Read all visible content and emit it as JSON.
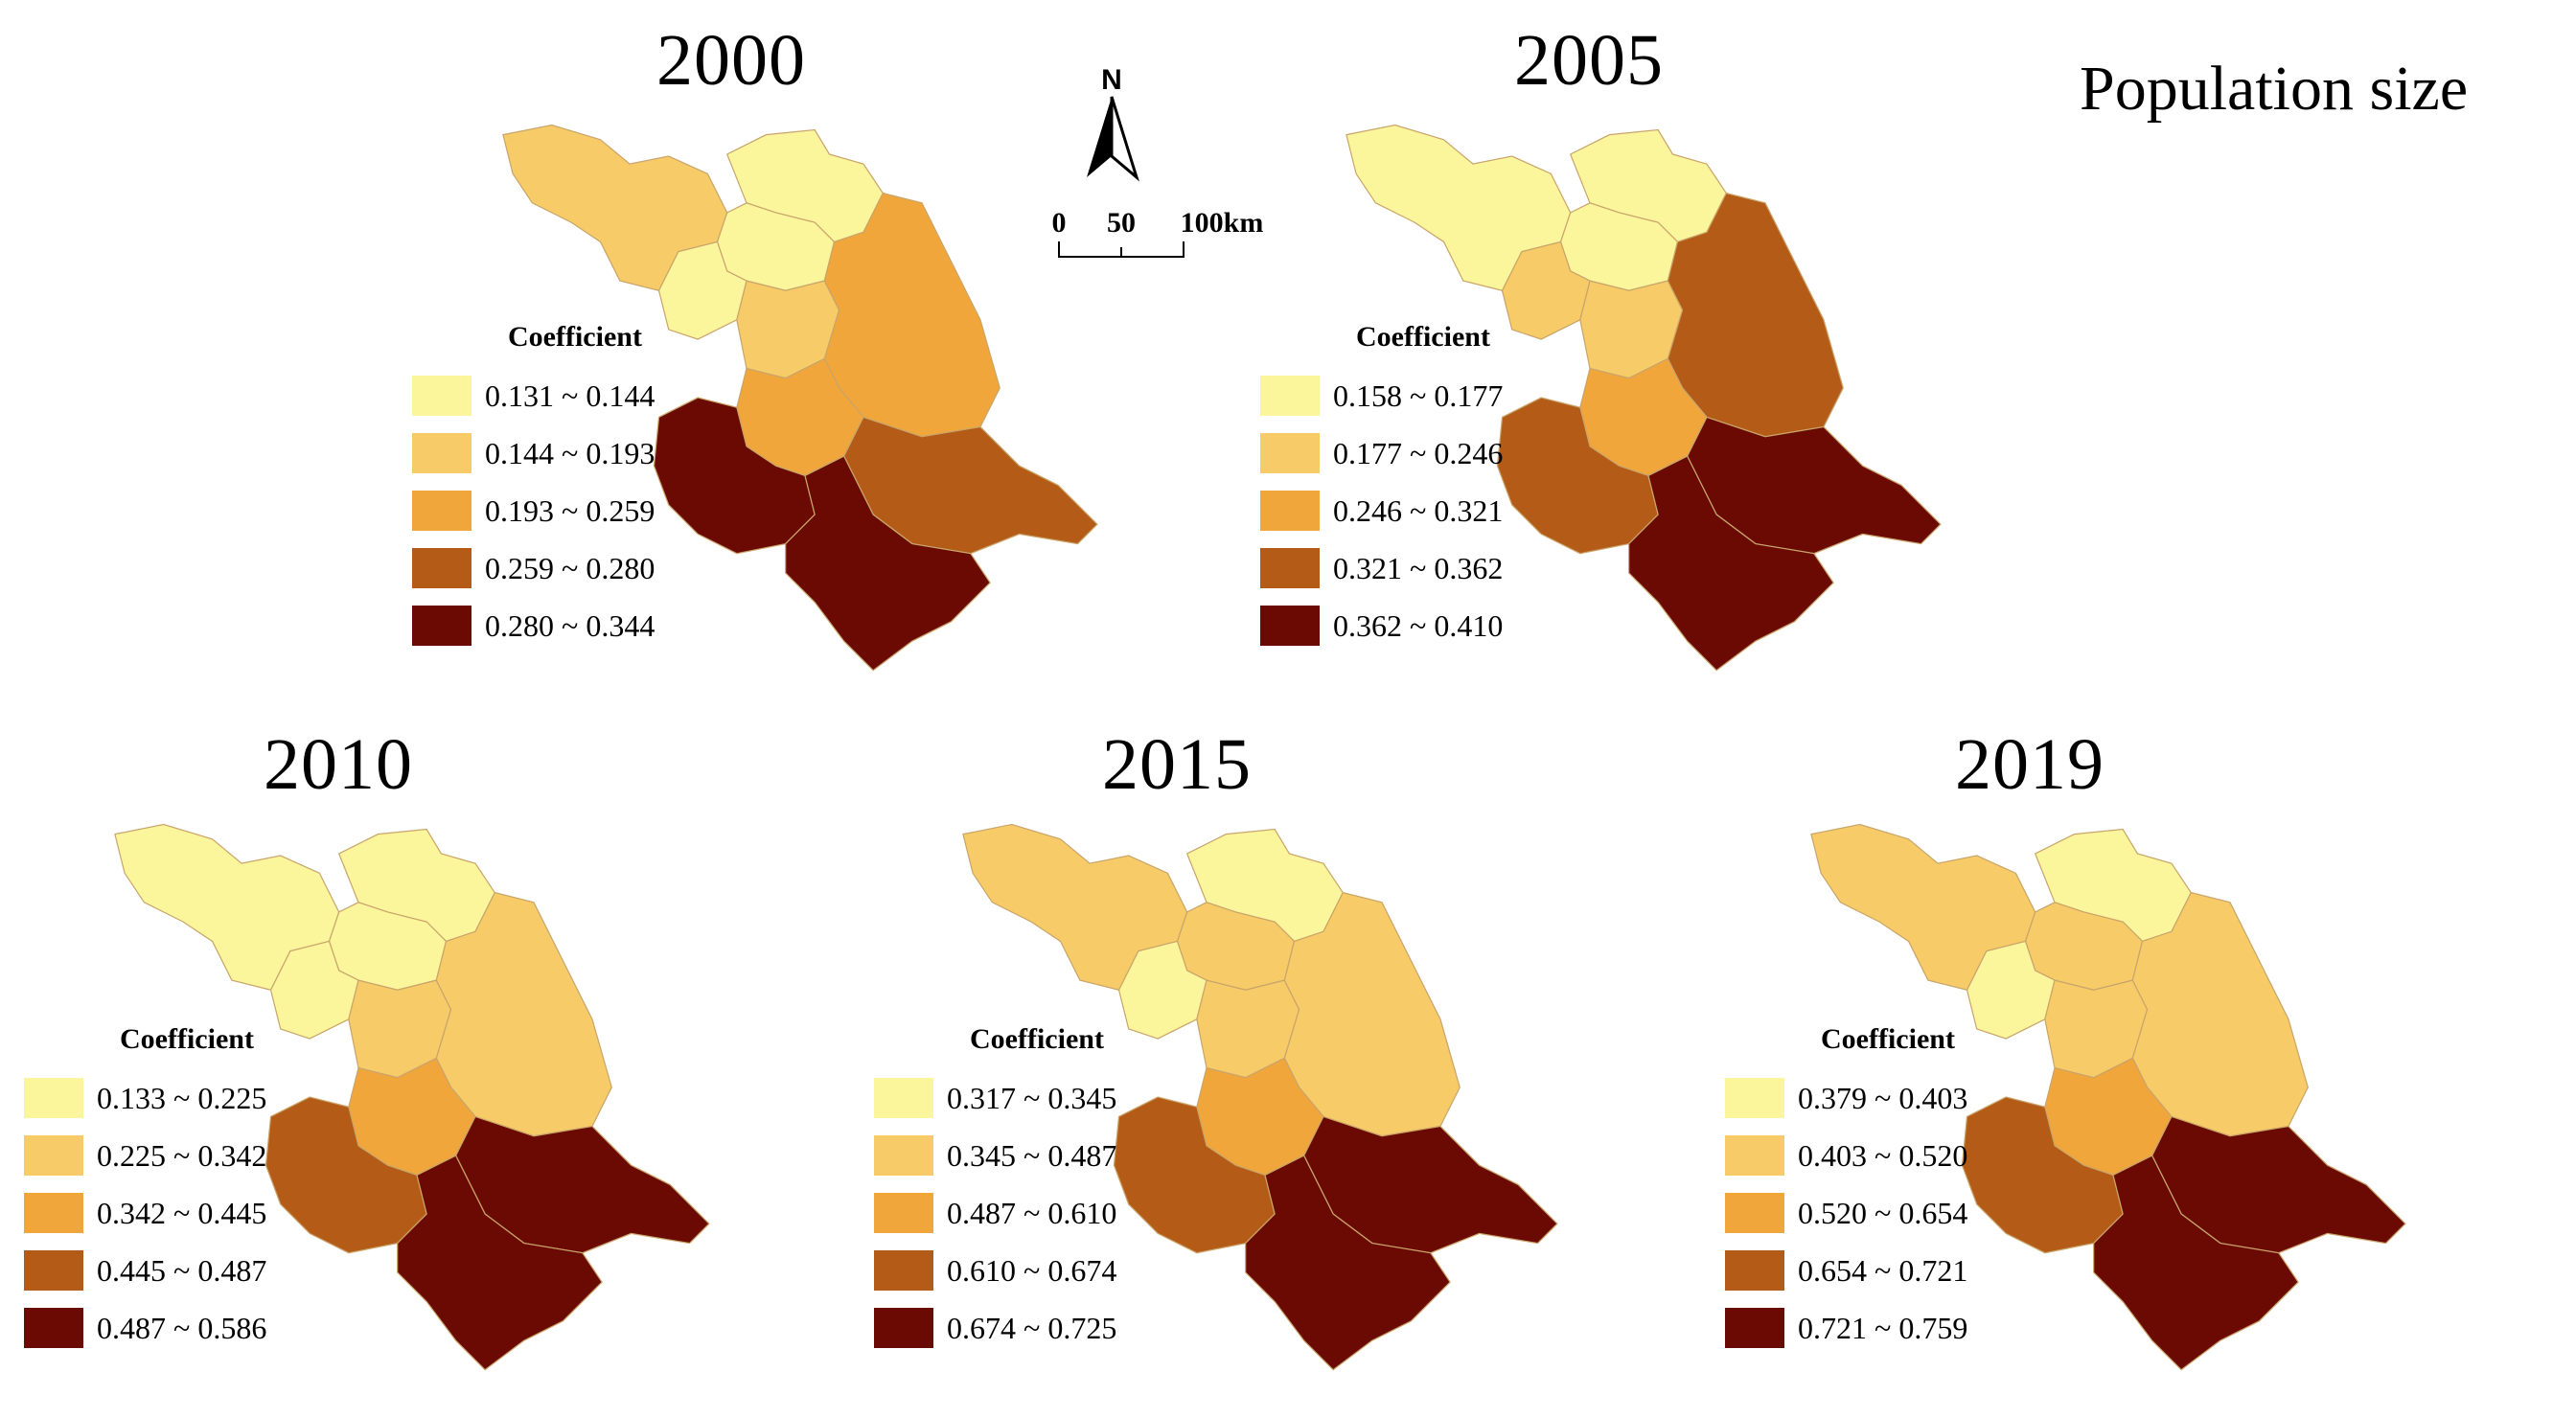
{
  "title": "Population size",
  "north_label": "N",
  "scale": {
    "labels": [
      "0",
      "50",
      "100km"
    ]
  },
  "legend_title": "Coefficient",
  "colors": [
    "#fbf59c",
    "#f7cb68",
    "#f0a63a",
    "#b45b17",
    "#6b0a02"
  ],
  "panels": [
    {
      "year": "2000",
      "legend": [
        "0.131 ~ 0.144",
        "0.144 ~ 0.193",
        "0.193 ~ 0.259",
        "0.259 ~ 0.280",
        "0.280 ~ 0.344"
      ],
      "region_classes": [
        2,
        1,
        1,
        1,
        2,
        3,
        3,
        4,
        5,
        5
      ]
    },
    {
      "year": "2005",
      "legend": [
        "0.158 ~ 0.177",
        "0.177 ~ 0.246",
        "0.246 ~ 0.321",
        "0.321 ~ 0.362",
        "0.362 ~ 0.410"
      ],
      "region_classes": [
        1,
        1,
        1,
        2,
        2,
        4,
        3,
        5,
        4,
        5
      ]
    },
    {
      "year": "2010",
      "legend": [
        "0.133 ~ 0.225",
        "0.225 ~ 0.342",
        "0.342 ~ 0.445",
        "0.445 ~ 0.487",
        "0.487 ~ 0.586"
      ],
      "region_classes": [
        1,
        1,
        1,
        1,
        2,
        2,
        3,
        5,
        4,
        5
      ]
    },
    {
      "year": "2015",
      "legend": [
        "0.317 ~ 0.345",
        "0.345 ~ 0.487",
        "0.487 ~ 0.610",
        "0.610 ~ 0.674",
        "0.674 ~ 0.725"
      ],
      "region_classes": [
        2,
        1,
        2,
        1,
        2,
        2,
        3,
        5,
        4,
        5
      ]
    },
    {
      "year": "2019",
      "legend": [
        "0.379 ~ 0.403",
        "0.403 ~ 0.520",
        "0.520 ~ 0.654",
        "0.654 ~ 0.721",
        "0.721 ~ 0.759"
      ],
      "region_classes": [
        2,
        1,
        2,
        1,
        2,
        2,
        3,
        5,
        4,
        5
      ]
    }
  ]
}
